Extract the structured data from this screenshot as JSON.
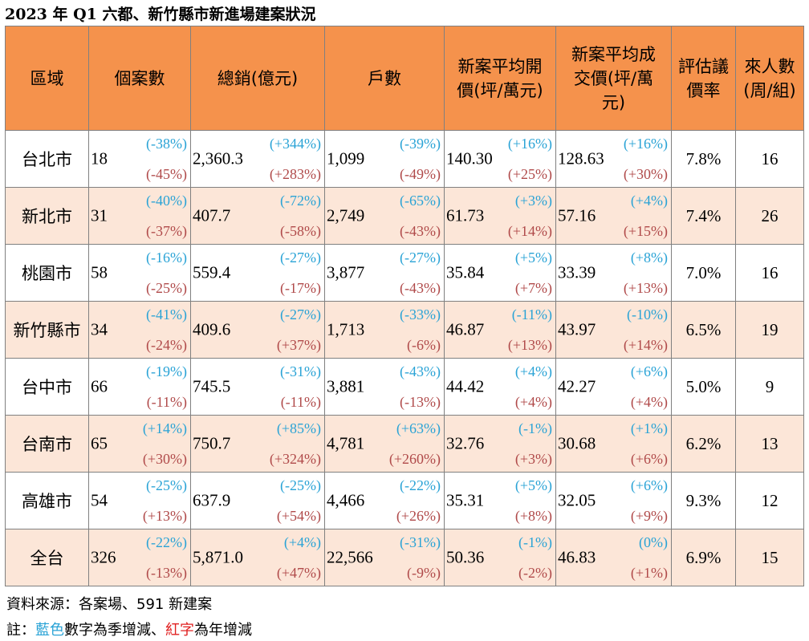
{
  "title": "2023 年 Q1 六都、新竹縣市新進場建案狀況",
  "headers": [
    "區域",
    "個案數",
    "總銷(億元)",
    "戶數",
    "新案平均開價(坪/萬元)",
    "新案平均成交價(坪/萬元)",
    "評估議價率",
    "來人數(周/組)"
  ],
  "header_lines": {
    "h4": [
      "新案平均開",
      "價(坪/萬元)"
    ],
    "h5": [
      "新案平均成",
      "交價(坪/萬",
      "元)"
    ],
    "h6": [
      "評估議",
      "價率"
    ],
    "h7": [
      "來人數",
      "(周/組)"
    ]
  },
  "rows": [
    {
      "region": "台北市",
      "cases": {
        "v": "18",
        "q": "(-38%)",
        "y": "(-45%)"
      },
      "sales": {
        "v": "2,360.3",
        "q": "(+344%)",
        "y": "(+283%)"
      },
      "units": {
        "v": "1,099",
        "q": "(-39%)",
        "y": "(-49%)"
      },
      "ask": {
        "v": "140.30",
        "q": "(+16%)",
        "y": "(+25%)"
      },
      "deal": {
        "v": "128.63",
        "q": "(+16%)",
        "y": "(+30%)"
      },
      "rate": "7.8%",
      "visitors": "16"
    },
    {
      "region": "新北市",
      "cases": {
        "v": "31",
        "q": "(-40%)",
        "y": "(-37%)"
      },
      "sales": {
        "v": "407.7",
        "q": "(-72%)",
        "y": "(-58%)"
      },
      "units": {
        "v": "2,749",
        "q": "(-65%)",
        "y": "(-43%)"
      },
      "ask": {
        "v": "61.73",
        "q": "(+3%)",
        "y": "(+14%)"
      },
      "deal": {
        "v": "57.16",
        "q": "(+4%)",
        "y": "(+15%)"
      },
      "rate": "7.4%",
      "visitors": "26"
    },
    {
      "region": "桃園市",
      "cases": {
        "v": "58",
        "q": "(-16%)",
        "y": "(-25%)"
      },
      "sales": {
        "v": "559.4",
        "q": "(-27%)",
        "y": "(-17%)"
      },
      "units": {
        "v": "3,877",
        "q": "(-27%)",
        "y": "(-43%)"
      },
      "ask": {
        "v": "35.84",
        "q": "(+5%)",
        "y": "(+7%)"
      },
      "deal": {
        "v": "33.39",
        "q": "(+8%)",
        "y": "(+13%)"
      },
      "rate": "7.0%",
      "visitors": "16"
    },
    {
      "region": "新竹縣市",
      "cases": {
        "v": "34",
        "q": "(-41%)",
        "y": "(-24%)"
      },
      "sales": {
        "v": "409.6",
        "q": "(-27%)",
        "y": "(+37%)"
      },
      "units": {
        "v": "1,713",
        "q": "(-33%)",
        "y": "(-6%)"
      },
      "ask": {
        "v": "46.87",
        "q": "(-11%)",
        "y": "(+13%)"
      },
      "deal": {
        "v": "43.97",
        "q": "(-10%)",
        "y": "(+14%)"
      },
      "rate": "6.5%",
      "visitors": "19"
    },
    {
      "region": "台中市",
      "cases": {
        "v": "66",
        "q": "(-19%)",
        "y": "(-11%)"
      },
      "sales": {
        "v": "745.5",
        "q": "(-31%)",
        "y": "(-11%)"
      },
      "units": {
        "v": "3,881",
        "q": "(-43%)",
        "y": "(-13%)"
      },
      "ask": {
        "v": "44.42",
        "q": "(+4%)",
        "y": "(+4%)"
      },
      "deal": {
        "v": "42.27",
        "q": "(+6%)",
        "y": "(+4%)"
      },
      "rate": "5.0%",
      "visitors": "9"
    },
    {
      "region": "台南市",
      "cases": {
        "v": "65",
        "q": "(+14%)",
        "y": "(+30%)"
      },
      "sales": {
        "v": "750.7",
        "q": "(+85%)",
        "y": "(+324%)"
      },
      "units": {
        "v": "4,781",
        "q": "(+63%)",
        "y": "(+260%)"
      },
      "ask": {
        "v": "32.76",
        "q": "(-1%)",
        "y": "(+3%)"
      },
      "deal": {
        "v": "30.68",
        "q": "(+1%)",
        "y": "(+6%)"
      },
      "rate": "6.2%",
      "visitors": "13"
    },
    {
      "region": "高雄市",
      "cases": {
        "v": "54",
        "q": "(-25%)",
        "y": "(+13%)"
      },
      "sales": {
        "v": "637.9",
        "q": "(-25%)",
        "y": "(+54%)"
      },
      "units": {
        "v": "4,466",
        "q": "(-22%)",
        "y": "(+26%)"
      },
      "ask": {
        "v": "35.31",
        "q": "(+5%)",
        "y": "(+8%)"
      },
      "deal": {
        "v": "32.05",
        "q": "(+6%)",
        "y": "(+9%)"
      },
      "rate": "9.3%",
      "visitors": "12"
    },
    {
      "region": "全台",
      "cases": {
        "v": "326",
        "q": "(-22%)",
        "y": "(-13%)"
      },
      "sales": {
        "v": "5,871.0",
        "q": "(+4%)",
        "y": "(+47%)"
      },
      "units": {
        "v": "22,566",
        "q": "(-31%)",
        "y": "(-9%)"
      },
      "ask": {
        "v": "50.36",
        "q": "(-1%)",
        "y": "(-2%)"
      },
      "deal": {
        "v": "46.83",
        "q": "(0%)",
        "y": "(+1%)"
      },
      "rate": "6.9%",
      "visitors": "15"
    }
  ],
  "source_note": "資料來源：各案場、591 新建案",
  "legend_note": {
    "prefix": "註：",
    "blue_word": "藍色",
    "blue_suffix": "數字為季增減、",
    "red_word": "紅字",
    "red_suffix": "為年增減"
  },
  "colors": {
    "header_bg": "#f5924c",
    "even_row_bg": "#fce6d8",
    "quarter_change": "#2aa3d6",
    "year_change": "#b04a4a"
  }
}
